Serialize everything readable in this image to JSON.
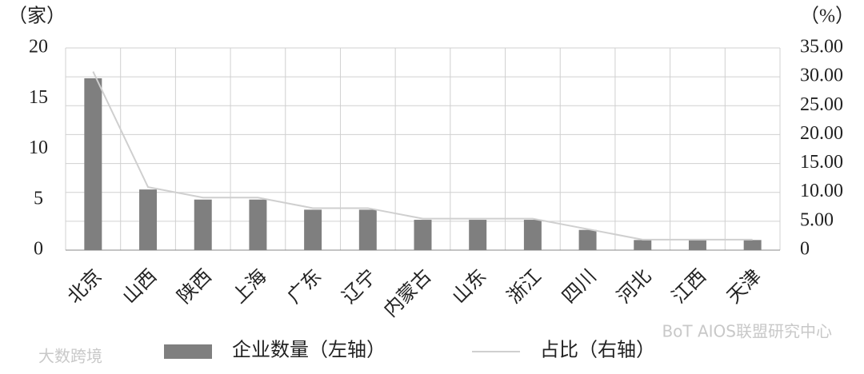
{
  "chart_data": {
    "type": "bar",
    "y_axis_label": "（家）",
    "y2_axis_label": "（%）",
    "categories": [
      "北京",
      "山西",
      "陕西",
      "上海",
      "广东",
      "辽宁",
      "内蒙古",
      "山东",
      "浙江",
      "四川",
      "河北",
      "江西",
      "天津"
    ],
    "series": [
      {
        "name": "企业数量（左轴）",
        "type": "bar",
        "color": "#7f7f7f",
        "values": [
          17,
          6,
          5,
          5,
          4,
          4,
          3,
          3,
          3,
          2,
          1,
          1,
          1
        ]
      },
      {
        "name": "占比（右轴）",
        "type": "line",
        "axis": "y2",
        "color": "#cfcfcf",
        "values": [
          30.91,
          10.91,
          9.09,
          9.09,
          7.27,
          7.27,
          5.45,
          5.45,
          5.45,
          3.64,
          1.82,
          1.82,
          1.82
        ]
      }
    ],
    "ylim": [
      0,
      20
    ],
    "yticks": [
      0,
      5,
      10,
      15,
      20
    ],
    "y2lim": [
      0,
      35
    ],
    "y2ticks": [
      0,
      {
        "value": 5,
        "label": "5.00"
      },
      {
        "value": 10,
        "label": "10.00"
      },
      {
        "value": 15,
        "label": "15.00"
      },
      {
        "value": 20,
        "label": "20.00"
      },
      {
        "value": 25,
        "label": "25.00"
      },
      {
        "value": 30,
        "label": "30.00"
      },
      {
        "value": 35,
        "label": "35.00"
      }
    ],
    "grid": true,
    "watermarks": [
      "BoT AIOS联盟研究中心",
      "大数跨境"
    ]
  }
}
